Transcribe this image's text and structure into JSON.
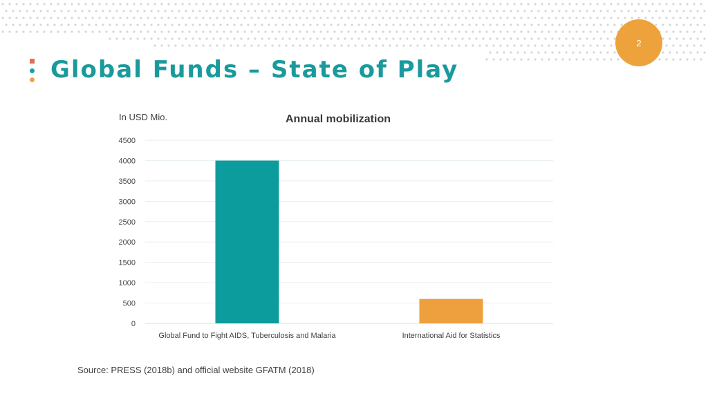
{
  "slide": {
    "title": "Global Funds – State of Play",
    "page_number": "2",
    "source": "Source: PRESS (2018b) and official website GFATM (2018)"
  },
  "colors": {
    "title": "#1a9a9c",
    "page_badge": "#eea23c",
    "marker_top": "#e07050",
    "marker_mid": "#1aa0a0",
    "marker_bottom": "#eea23c",
    "dot_pattern": "#d6d6d6"
  },
  "chart_data": {
    "type": "bar",
    "title": "Annual mobilization",
    "ylabel": "In USD Mio.",
    "xlabel": "",
    "categories": [
      "Global Fund to Fight AIDS, Tuberculosis and Malaria",
      "International Aid for Statistics"
    ],
    "values": [
      4000,
      600
    ],
    "bar_colors": [
      "#0d9c9e",
      "#ee9f3e"
    ],
    "ylim": [
      0,
      4500
    ],
    "yticks": [
      0,
      500,
      1000,
      1500,
      2000,
      2500,
      3000,
      3500,
      4000,
      4500
    ],
    "grid": true,
    "legend": "none"
  }
}
